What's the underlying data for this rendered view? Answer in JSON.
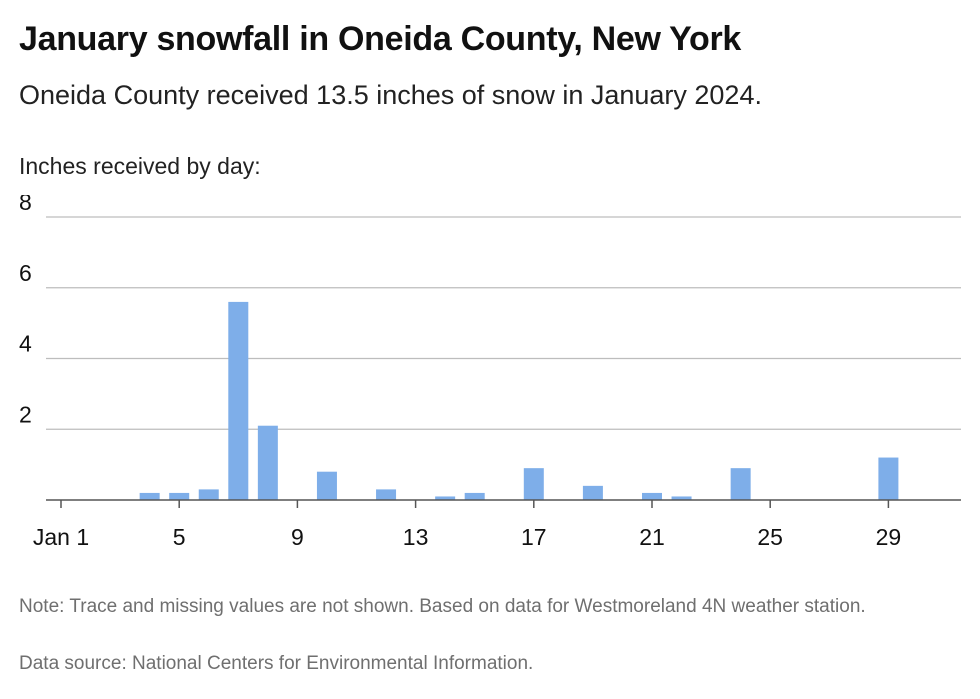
{
  "header": {
    "title": "January snowfall in Oneida County, New York",
    "subtitle": "Oneida County received 13.5 inches of snow in January 2024."
  },
  "footer": {
    "note": "Note: Trace and missing values are not shown. Based on data for Westmoreland 4N weather station.",
    "source": "Data source: National Centers for Environmental Information."
  },
  "colors": {
    "bar": "#7eaee9",
    "grid": "#bdbdbd",
    "axis": "#555555"
  },
  "chart_data": {
    "type": "bar",
    "title": "January snowfall in Oneida County, New York",
    "subtitle": "Oneida County received 13.5 inches of snow in January 2024.",
    "ylabel": "Inches received by day:",
    "xlabel": "",
    "ylim": [
      0,
      8
    ],
    "y_ticks": [
      "2",
      "4",
      "6",
      "8"
    ],
    "x_tick_labels": [
      {
        "day": 1,
        "label": "Jan 1"
      },
      {
        "day": 5,
        "label": "5"
      },
      {
        "day": 9,
        "label": "9"
      },
      {
        "day": 13,
        "label": "13"
      },
      {
        "day": 17,
        "label": "17"
      },
      {
        "day": 21,
        "label": "21"
      },
      {
        "day": 25,
        "label": "25"
      },
      {
        "day": 29,
        "label": "29"
      }
    ],
    "grid": true,
    "x": [
      4,
      5,
      6,
      7,
      8,
      10,
      12,
      14,
      15,
      17,
      19,
      21,
      22,
      24,
      29
    ],
    "values": [
      0.2,
      0.2,
      0.3,
      5.6,
      2.1,
      0.8,
      0.3,
      0.1,
      0.2,
      0.9,
      0.4,
      0.2,
      0.1,
      0.9,
      1.2
    ]
  }
}
